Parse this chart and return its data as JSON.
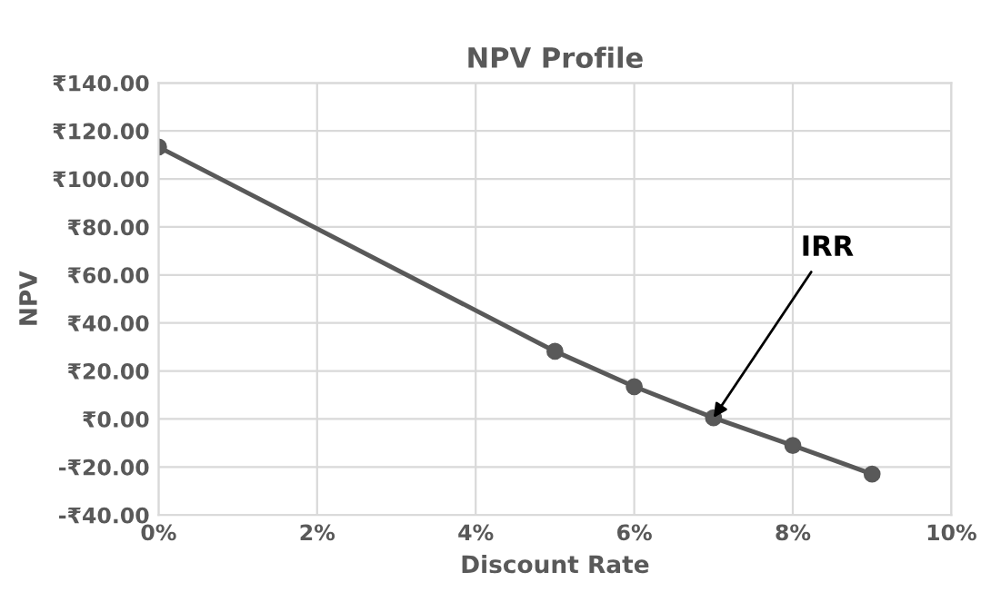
{
  "chart_data": {
    "type": "line",
    "title": "NPV Profile",
    "xlabel": "Discount Rate",
    "ylabel": "NPV",
    "x": [
      0,
      5,
      6,
      7,
      8,
      9
    ],
    "series": [
      {
        "color": "#595959",
        "values": [
          113.3,
          28.2,
          13.5,
          0.5,
          -11,
          -22.9
        ]
      }
    ],
    "marker": "circle",
    "line_style": "solid",
    "grid": true,
    "legend": false,
    "xlim": [
      0,
      10
    ],
    "xticks": [
      {
        "value": 0,
        "label": "0%"
      },
      {
        "value": 2,
        "label": "2%"
      },
      {
        "value": 4,
        "label": "4%"
      },
      {
        "value": 6,
        "label": "6%"
      },
      {
        "value": 8,
        "label": "8%"
      },
      {
        "value": 10,
        "label": "10%"
      }
    ],
    "ylim": [
      -40,
      140
    ],
    "yticks": [
      {
        "value": -40,
        "label": "-₹40.00"
      },
      {
        "value": -20,
        "label": "-₹20.00"
      },
      {
        "value": 0,
        "label": "₹0.00"
      },
      {
        "value": 20,
        "label": "₹20.00"
      },
      {
        "value": 40,
        "label": "₹40.00"
      },
      {
        "value": 60,
        "label": "₹60.00"
      },
      {
        "value": 80,
        "label": "₹80.00"
      },
      {
        "value": 100,
        "label": "₹100.00"
      },
      {
        "value": 120,
        "label": "₹120.00"
      },
      {
        "value": 140,
        "label": "₹140.00"
      }
    ],
    "annotations": [
      {
        "text": "IRR",
        "x": 7,
        "y": 0.5
      }
    ]
  }
}
